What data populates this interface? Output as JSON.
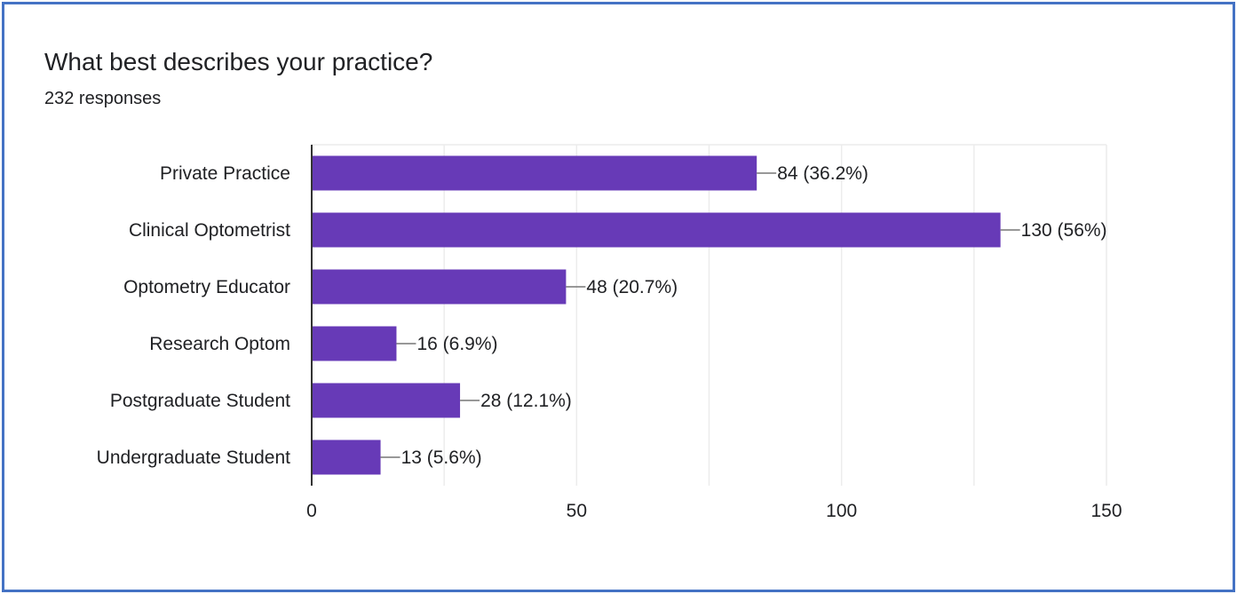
{
  "title": "What best describes your practice?",
  "subtitle": "232 responses",
  "colors": {
    "bar": "#673ab7",
    "frame": "#4472c4",
    "grid": "#ececec",
    "axis": "#333333",
    "leader": "#777777",
    "text": "#202124"
  },
  "chart_data": {
    "type": "bar",
    "orientation": "horizontal",
    "title": "What best describes your practice?",
    "subtitle": "232 responses",
    "categories": [
      "Private Practice",
      "Clinical Optometrist",
      "Optometry Educator",
      "Research Optom",
      "Postgraduate Student",
      "Undergraduate Student"
    ],
    "values": [
      84,
      130,
      48,
      16,
      28,
      13
    ],
    "data_labels": [
      "84 (36.2%)",
      "130 (56%)",
      "48 (20.7%)",
      "16 (6.9%)",
      "28 (12.1%)",
      "13 (5.6%)"
    ],
    "xlim": [
      0,
      150
    ],
    "xticks": [
      0,
      50,
      100,
      150
    ],
    "grid_minor_step": 25,
    "grid": true,
    "xlabel": "",
    "ylabel": ""
  }
}
